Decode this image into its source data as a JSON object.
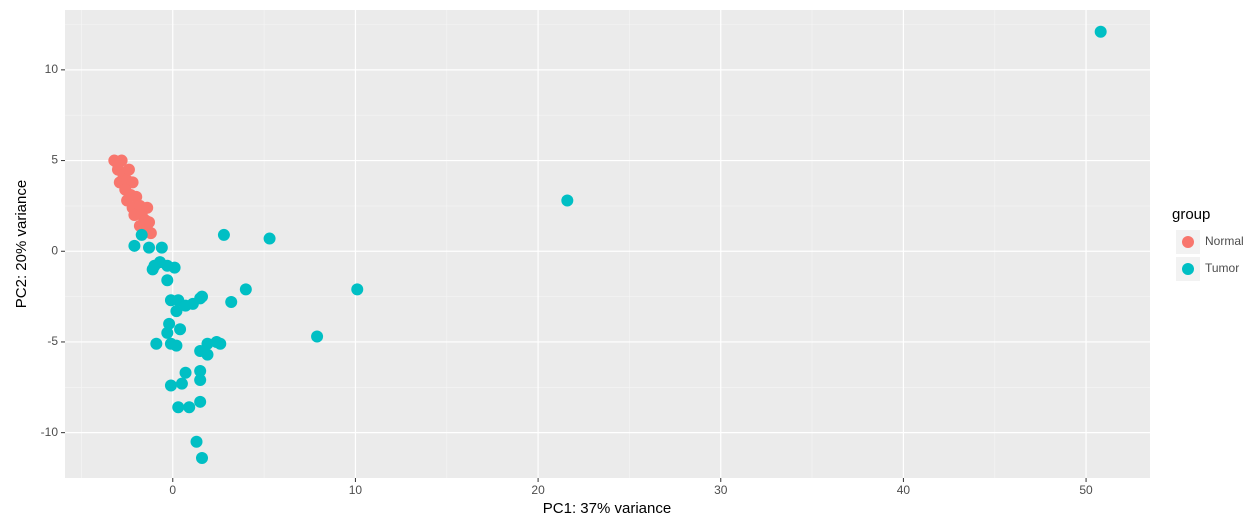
{
  "chart_data": {
    "type": "scatter",
    "x_label": "PC1: 37% variance",
    "y_label": "PC2: 20% variance",
    "xlim": [
      -5.9,
      53.5
    ],
    "ylim": [
      -12.5,
      13.3
    ],
    "xticks": [
      0,
      10,
      20,
      30,
      40,
      50
    ],
    "yticks": [
      -10,
      -5,
      0,
      5,
      10
    ],
    "xminor": [
      -5,
      5,
      15,
      25,
      35,
      45
    ],
    "yminor": [
      -7.5,
      -2.5,
      2.5,
      7.5,
      12.5
    ],
    "grid": true,
    "legend_title": "group",
    "legend_position": "right",
    "series": [
      {
        "name": "Normal",
        "color": "#F8766D",
        "x": [
          -3.2,
          -2.8,
          -3.0,
          -2.7,
          -2.9,
          -2.5,
          -2.2,
          -2.6,
          -2.3,
          -2.0,
          -2.5,
          -2.2,
          -1.8,
          -1.4,
          -2.1,
          -1.7,
          -1.5,
          -1.3,
          -1.8,
          -1.2,
          -1.4,
          -3.0,
          -2.4
        ],
        "y": [
          5.0,
          5.0,
          4.5,
          4.2,
          3.8,
          3.9,
          3.8,
          3.4,
          3.1,
          3.0,
          2.8,
          2.4,
          2.5,
          2.4,
          2.0,
          2.0,
          1.7,
          1.6,
          1.4,
          1.0,
          1.2,
          4.8,
          4.5
        ]
      },
      {
        "name": "Tumor",
        "color": "#00BFC4",
        "x": [
          50.8,
          21.6,
          10.1,
          7.9,
          5.3,
          2.8,
          4.0,
          3.2,
          -2.1,
          -1.7,
          -1.3,
          -0.6,
          -1.1,
          -1.0,
          -0.7,
          -0.3,
          0.1,
          -0.3,
          -0.1,
          0.3,
          0.7,
          0.2,
          1.1,
          1.5,
          1.6,
          -0.2,
          -0.3,
          0.4,
          -0.9,
          -0.1,
          0.2,
          1.5,
          1.9,
          1.9,
          2.4,
          2.6,
          1.5,
          1.5,
          0.7,
          -0.1,
          0.5,
          0.3,
          0.9,
          1.5,
          1.3,
          1.6
        ],
        "y": [
          12.1,
          2.8,
          -2.1,
          -4.7,
          0.7,
          0.9,
          -2.1,
          -2.8,
          0.3,
          0.9,
          0.2,
          0.2,
          -1.0,
          -0.8,
          -0.6,
          -0.8,
          -0.9,
          -1.6,
          -2.7,
          -2.7,
          -3.0,
          -3.3,
          -2.9,
          -2.6,
          -2.5,
          -4.0,
          -4.5,
          -4.3,
          -5.1,
          -5.1,
          -5.2,
          -5.5,
          -5.7,
          -5.1,
          -5.0,
          -5.1,
          -6.6,
          -7.1,
          -6.7,
          -7.4,
          -7.3,
          -8.6,
          -8.6,
          -8.3,
          -10.5,
          -11.4
        ]
      }
    ]
  }
}
